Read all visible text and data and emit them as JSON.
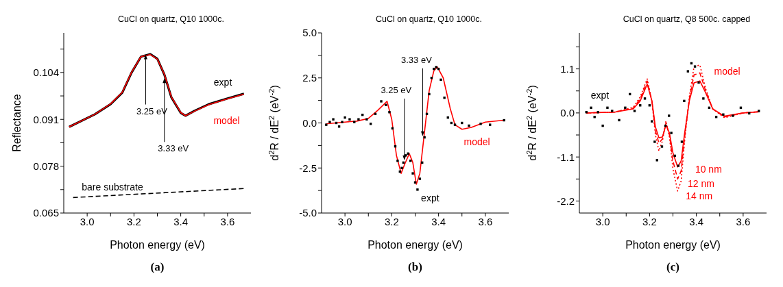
{
  "chart_data": [
    {
      "type": "line",
      "title": "CuCl on quartz, Q10 1000c.",
      "xlabel": "Photon energy (eV)",
      "ylabel": "Reflectance",
      "xlim": [
        2.9,
        3.7
      ],
      "xticks": [
        {
          "value": 3.0,
          "label": "3.0"
        },
        {
          "value": 3.1,
          "label": null
        },
        {
          "value": 3.2,
          "label": "3.2"
        },
        {
          "value": 3.3,
          "label": null
        },
        {
          "value": 3.4,
          "label": "3.4"
        },
        {
          "value": 3.5,
          "label": null
        },
        {
          "value": 3.6,
          "label": "3.6"
        }
      ],
      "ylim": [
        0.065,
        0.115
      ],
      "yticks": [
        0.065,
        {
          "value": 0.0715,
          "label": null
        },
        0.078,
        {
          "value": 0.0845,
          "label": null
        },
        0.091,
        {
          "value": 0.0975,
          "label": null
        },
        0.104,
        {
          "value": 0.1105,
          "label": null
        }
      ],
      "series": [
        {
          "name": "expt",
          "color": "#000000",
          "x": [
            2.923,
            3.033,
            3.1,
            3.15,
            3.19,
            3.23,
            3.27,
            3.3,
            3.33,
            3.36,
            3.4,
            3.42,
            3.46,
            3.52,
            3.6,
            3.67
          ],
          "values": [
            0.0889,
            0.0924,
            0.0952,
            0.0984,
            0.104,
            0.1084,
            0.1091,
            0.1078,
            0.1034,
            0.0971,
            0.0928,
            0.092,
            0.0934,
            0.0952,
            0.0968,
            0.0981
          ]
        },
        {
          "name": "model",
          "color": "#ff0000",
          "x": [
            2.923,
            3.033,
            3.1,
            3.15,
            3.19,
            3.23,
            3.27,
            3.3,
            3.33,
            3.36,
            3.4,
            3.42,
            3.46,
            3.52,
            3.6,
            3.67
          ],
          "values": [
            0.0889,
            0.0924,
            0.0953,
            0.0985,
            0.1041,
            0.1084,
            0.109,
            0.1077,
            0.1035,
            0.0972,
            0.0929,
            0.092,
            0.0933,
            0.0951,
            0.0967,
            0.098
          ]
        },
        {
          "name": "bare substrate",
          "color": "#000000",
          "line_style": "dashed",
          "x": [
            2.94,
            3.67
          ],
          "values": [
            0.0693,
            0.0718
          ]
        }
      ],
      "annotations": [
        {
          "text": "3.25 eV",
          "x": 3.25,
          "y": 0.109
        },
        {
          "text": "3.33 eV",
          "x": 3.33,
          "y": 0.1024
        },
        "(a)"
      ]
    },
    {
      "type": "line",
      "title": "CuCl on quartz, Q10 1000c.",
      "xlabel": "Photon energy (eV)",
      "ylabel": "d$^{2}$R / dE$^{2}$  (eV$^{-2}$)",
      "xlim": [
        2.9,
        3.7
      ],
      "xticks": [
        {
          "value": 3.0,
          "label": "3.0"
        },
        {
          "value": 3.1,
          "label": null
        },
        {
          "value": 3.2,
          "label": "3.2"
        },
        {
          "value": 3.3,
          "label": null
        },
        {
          "value": 3.4,
          "label": "3.4"
        },
        {
          "value": 3.5,
          "label": null
        },
        {
          "value": 3.6,
          "label": "3.6"
        }
      ],
      "ylim": [
        -5,
        5
      ],
      "yticks": [
        {
          "value": -5,
          "label": "-5.0"
        },
        {
          "value": -3.75,
          "label": null
        },
        -2.5,
        {
          "value": -1.25,
          "label": null
        },
        {
          "value": 0,
          "label": "0.0"
        },
        {
          "value": 1.25,
          "label": null
        },
        2.5,
        {
          "value": 3.75,
          "label": null
        },
        {
          "value": 5,
          "label": "5.0"
        }
      ],
      "series": [
        {
          "name": "expt",
          "type": "scatter",
          "marker": "square",
          "color": "#000000",
          "x": [
            2.92,
            2.935,
            2.95,
            2.963,
            2.975,
            2.988,
            3.0,
            3.02,
            3.04,
            3.058,
            3.075,
            3.093,
            3.11,
            3.13,
            3.155,
            3.175,
            3.19,
            3.203,
            3.215,
            3.225,
            3.235,
            3.243,
            3.25,
            3.26,
            3.27,
            3.28,
            3.29,
            3.3,
            3.31,
            3.32,
            3.33,
            3.34,
            3.35,
            3.36,
            3.37,
            3.38,
            3.39,
            3.4,
            3.41,
            3.425,
            3.44,
            3.455,
            3.47,
            3.5,
            3.53,
            3.58,
            3.62,
            3.68
          ],
          "values": [
            -0.1,
            0.05,
            0.2,
            0.0,
            -0.2,
            0.05,
            0.3,
            0.2,
            0.05,
            0.2,
            0.45,
            0.2,
            -0.05,
            0.5,
            1.2,
            1.0,
            0.6,
            -0.3,
            -1.3,
            -2.1,
            -2.7,
            -2.5,
            -2.2,
            -1.8,
            -1.7,
            -2.1,
            -2.8,
            -3.3,
            -3.7,
            -3.1,
            -2.2,
            -0.8,
            0.5,
            1.6,
            2.5,
            3.0,
            3.1,
            3.0,
            2.4,
            1.4,
            0.3,
            0.0,
            -0.1,
            0.0,
            -0.15,
            -0.05,
            -0.1,
            0.15
          ]
        },
        {
          "name": "model",
          "color": "#ff0000",
          "x": [
            2.92,
            3.0,
            3.05,
            3.1,
            3.14,
            3.18,
            3.2,
            3.22,
            3.24,
            3.255,
            3.275,
            3.29,
            3.305,
            3.32,
            3.34,
            3.36,
            3.38,
            3.395,
            3.42,
            3.45,
            3.47,
            3.5,
            3.54,
            3.6,
            3.68
          ],
          "values": [
            -0.05,
            0.05,
            0.1,
            0.25,
            0.7,
            1.2,
            0.2,
            -1.8,
            -2.8,
            -2.3,
            -1.7,
            -2.2,
            -3.4,
            -2.8,
            -0.5,
            1.8,
            2.9,
            3.1,
            2.5,
            0.8,
            -0.1,
            -0.35,
            -0.25,
            0.05,
            0.15
          ]
        }
      ],
      "annotations": [
        {
          "text": "3.25 eV",
          "x": 3.254,
          "y": -2.07
        },
        {
          "text": "3.33 eV",
          "x": 3.332,
          "y": -0.73
        },
        "(b)"
      ]
    },
    {
      "type": "line",
      "title": "CuCl on quartz, Q8 500c. capped",
      "xlabel": "Photon energy (eV)",
      "ylabel": "d$^{2}$R / dE$^{2}$  (eV$^{-2}$)",
      "xlim": [
        2.9,
        3.7
      ],
      "xticks": [
        {
          "value": 3.0,
          "label": "3.0"
        },
        {
          "value": 3.1,
          "label": null
        },
        {
          "value": 3.2,
          "label": "3.2"
        },
        {
          "value": 3.3,
          "label": null
        },
        {
          "value": 3.4,
          "label": "3.4"
        },
        {
          "value": 3.5,
          "label": null
        },
        {
          "value": 3.6,
          "label": "3.6"
        }
      ],
      "ylim": [
        -2.5,
        2.0
      ],
      "yticks": [
        -2.2,
        {
          "value": -1.65,
          "label": null
        },
        -1.1,
        {
          "value": -0.55,
          "label": null
        },
        {
          "value": 0,
          "label": "0.0"
        },
        {
          "value": 0.55,
          "label": null
        },
        1.1,
        {
          "value": 1.65,
          "label": null
        }
      ],
      "series": [
        {
          "name": "expt",
          "type": "scatter",
          "marker": "square",
          "color": "#000000",
          "x": [
            2.93,
            2.95,
            2.965,
            2.98,
            3.0,
            3.02,
            3.04,
            3.07,
            3.096,
            3.116,
            3.136,
            3.16,
            3.18,
            3.2,
            3.21,
            3.222,
            3.232,
            3.253,
            3.268,
            3.283,
            3.293,
            3.308,
            3.323,
            3.338,
            3.348,
            3.364,
            3.379,
            3.394,
            3.41,
            3.43,
            3.455,
            3.485,
            3.515,
            3.556,
            3.59,
            3.626,
            3.667
          ],
          "values": [
            0.02,
            0.13,
            -0.1,
            0.02,
            -0.32,
            0.13,
            0.05,
            -0.18,
            0.13,
            0.47,
            0.05,
            0.19,
            0.36,
            0.19,
            -0.21,
            -0.72,
            -1.18,
            -0.84,
            -0.32,
            -0.07,
            -0.5,
            -1.07,
            -1.32,
            -0.72,
            0.3,
            1.04,
            1.24,
            1.16,
            0.76,
            0.36,
            0.13,
            -0.1,
            -0.04,
            -0.07,
            0.13,
            -0.01,
            0.05
          ]
        },
        {
          "name": "10 nm",
          "color": "#ff0000",
          "line_style": "solid",
          "x": [
            2.93,
            3.05,
            3.13,
            3.16,
            3.19,
            3.21,
            3.225,
            3.24,
            3.255,
            3.27,
            3.285,
            3.3,
            3.32,
            3.335,
            3.35,
            3.37,
            3.39,
            3.415,
            3.44,
            3.47,
            3.52,
            3.6,
            3.67
          ],
          "values": [
            0,
            0.02,
            0.1,
            0.3,
            0.72,
            0.3,
            -0.35,
            -0.62,
            -0.6,
            -0.3,
            -0.5,
            -1.0,
            -1.35,
            -1.2,
            -0.5,
            0.3,
            0.75,
            0.8,
            0.5,
            0.1,
            -0.08,
            0,
            0.03
          ]
        },
        {
          "name": "12 nm",
          "color": "#ff0000",
          "line_style": "dashed",
          "x": [
            2.93,
            3.05,
            3.13,
            3.16,
            3.19,
            3.21,
            3.225,
            3.24,
            3.255,
            3.27,
            3.285,
            3.3,
            3.32,
            3.335,
            3.35,
            3.37,
            3.39,
            3.415,
            3.44,
            3.47,
            3.52,
            3.6,
            3.67
          ],
          "values": [
            0,
            0.02,
            0.12,
            0.35,
            0.8,
            0.3,
            -0.45,
            -0.75,
            -0.65,
            -0.25,
            -0.55,
            -1.2,
            -1.65,
            -1.45,
            -0.6,
            0.35,
            0.95,
            1.0,
            0.55,
            0.1,
            -0.1,
            0,
            0.03
          ]
        },
        {
          "name": "14 nm",
          "color": "#ff0000",
          "line_style": "dotted",
          "x": [
            2.93,
            3.05,
            3.13,
            3.16,
            3.19,
            3.21,
            3.225,
            3.24,
            3.255,
            3.27,
            3.285,
            3.3,
            3.32,
            3.335,
            3.35,
            3.37,
            3.39,
            3.415,
            3.44,
            3.47,
            3.52,
            3.6,
            3.67
          ],
          "values": [
            0,
            0.02,
            0.14,
            0.4,
            0.85,
            0.3,
            -0.55,
            -0.95,
            -0.7,
            -0.2,
            -0.6,
            -1.4,
            -1.95,
            -1.7,
            -0.7,
            0.4,
            1.15,
            1.2,
            0.6,
            0.1,
            -0.12,
            0,
            0.03
          ]
        }
      ],
      "annotations": [
        "model",
        "(c)"
      ]
    }
  ]
}
